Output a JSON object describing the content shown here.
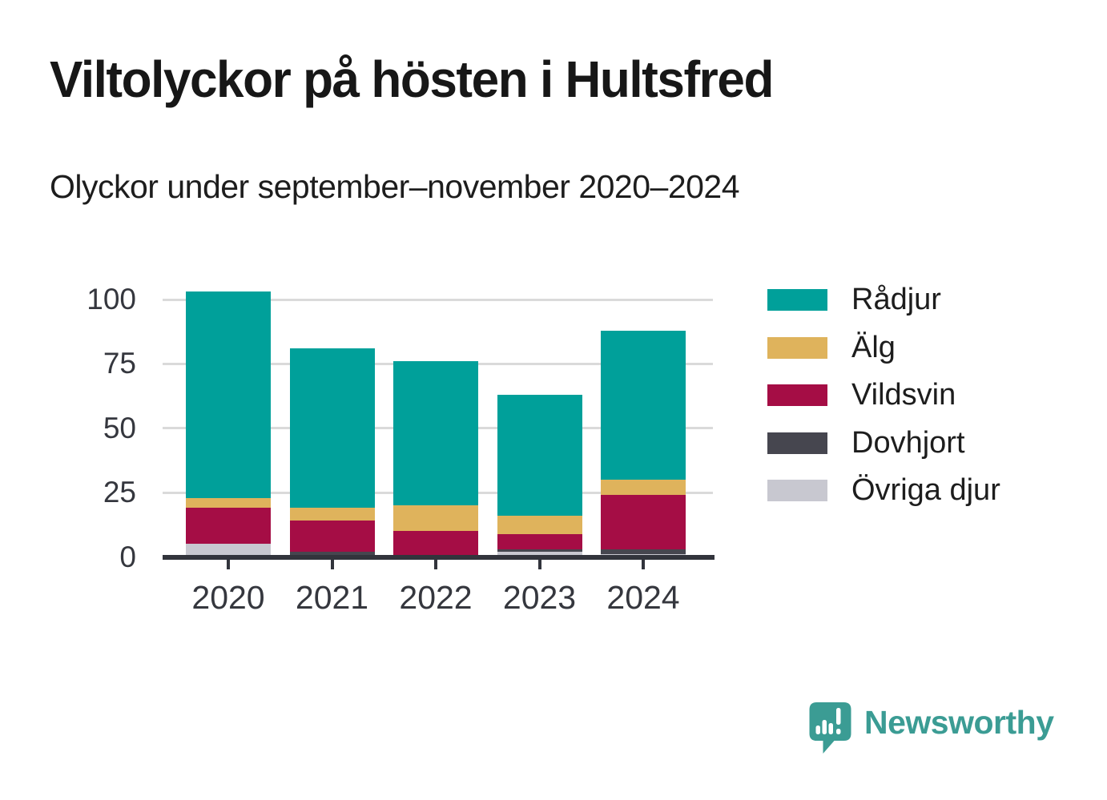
{
  "header": {
    "title": "Viltolyckor på hösten i Hultsfred",
    "subtitle": "Olyckor under september–november 2020–2024"
  },
  "chart_data": {
    "type": "bar",
    "stacked": true,
    "title": "Viltolyckor på hösten i Hultsfred",
    "subtitle": "Olyckor under september–november 2020–2024",
    "categories": [
      "2020",
      "2021",
      "2022",
      "2023",
      "2024"
    ],
    "series": [
      {
        "name": "Rådjur",
        "color": "#00a09a",
        "values": [
          80,
          62,
          56,
          47,
          58
        ]
      },
      {
        "name": "Älg",
        "color": "#dfb35c",
        "values": [
          4,
          5,
          10,
          7,
          6
        ]
      },
      {
        "name": "Vildsvin",
        "color": "#a50d45",
        "values": [
          14,
          12,
          10,
          6,
          21
        ]
      },
      {
        "name": "Dovhjort",
        "color": "#46464f",
        "values": [
          0,
          2,
          0,
          1,
          2
        ]
      },
      {
        "name": "Övriga djur",
        "color": "#c8c8d0",
        "values": [
          5,
          0,
          0,
          2,
          1
        ]
      }
    ],
    "totals": [
      103,
      81,
      76,
      63,
      88
    ],
    "stack_order_bottom_to_top": [
      "Övriga djur",
      "Dovhjort",
      "Vildsvin",
      "Älg",
      "Rådjur"
    ],
    "xlabel": "",
    "ylabel": "",
    "ylim": [
      0,
      107
    ],
    "yticks": [
      "0",
      "25",
      "50",
      "75",
      "100"
    ],
    "grid": "horizontal",
    "legend_position": "right"
  },
  "colors": {
    "background": "#ffffff",
    "axis": "#32343c",
    "gridline": "#dadada",
    "tick_text": "#35373e",
    "title_text": "#171717",
    "logo_teal": "#3b9c94"
  },
  "logo": {
    "text": "Newsworthy",
    "icon": "speech-bubble-bar-chart-exclamation"
  }
}
